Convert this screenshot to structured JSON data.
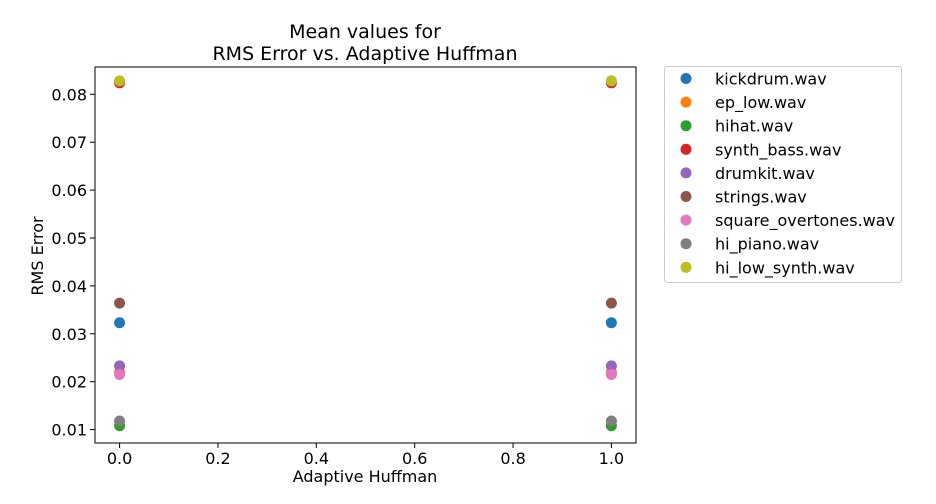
{
  "chart_data": {
    "type": "scatter",
    "title": [
      "Mean values for",
      "RMS Error vs. Adaptive Huffman"
    ],
    "xlabel": "Adaptive Huffman",
    "ylabel": "RMS Error",
    "xlim": [
      -0.05,
      1.05
    ],
    "ylim": [
      0.0072,
      0.0857
    ],
    "xticks": [
      0.0,
      0.2,
      0.4,
      0.6,
      0.8,
      1.0
    ],
    "xtick_labels": [
      "0.0",
      "0.2",
      "0.4",
      "0.6",
      "0.8",
      "1.0"
    ],
    "yticks": [
      0.01,
      0.02,
      0.03,
      0.04,
      0.05,
      0.06,
      0.07,
      0.08
    ],
    "ytick_labels": [
      "0.01",
      "0.02",
      "0.03",
      "0.04",
      "0.05",
      "0.06",
      "0.07",
      "0.08"
    ],
    "grid": false,
    "legend_position": "outside-right",
    "series": [
      {
        "name": "kickdrum.wav",
        "color": "#1f77b4",
        "x": [
          0,
          1
        ],
        "y": [
          0.0323,
          0.0323
        ]
      },
      {
        "name": "ep_low.wav",
        "color": "#ff7f0e",
        "x": [
          0,
          1
        ],
        "y": [
          0.022,
          0.022
        ]
      },
      {
        "name": "hihat.wav",
        "color": "#2ca02c",
        "x": [
          0,
          1
        ],
        "y": [
          0.0108,
          0.0108
        ]
      },
      {
        "name": "synth_bass.wav",
        "color": "#d62728",
        "x": [
          0,
          1
        ],
        "y": [
          0.0824,
          0.0824
        ]
      },
      {
        "name": "drumkit.wav",
        "color": "#9467bd",
        "x": [
          0,
          1
        ],
        "y": [
          0.0233,
          0.0233
        ]
      },
      {
        "name": "strings.wav",
        "color": "#8c564b",
        "x": [
          0,
          1
        ],
        "y": [
          0.0364,
          0.0364
        ]
      },
      {
        "name": "square_overtones.wav",
        "color": "#e377c2",
        "x": [
          0,
          1
        ],
        "y": [
          0.0215,
          0.0215
        ]
      },
      {
        "name": "hi_piano.wav",
        "color": "#7f7f7f",
        "x": [
          0,
          1
        ],
        "y": [
          0.0118,
          0.0118
        ]
      },
      {
        "name": "hi_low_synth.wav",
        "color": "#bcbd22",
        "x": [
          0,
          1
        ],
        "y": [
          0.0828,
          0.0828
        ]
      }
    ]
  }
}
